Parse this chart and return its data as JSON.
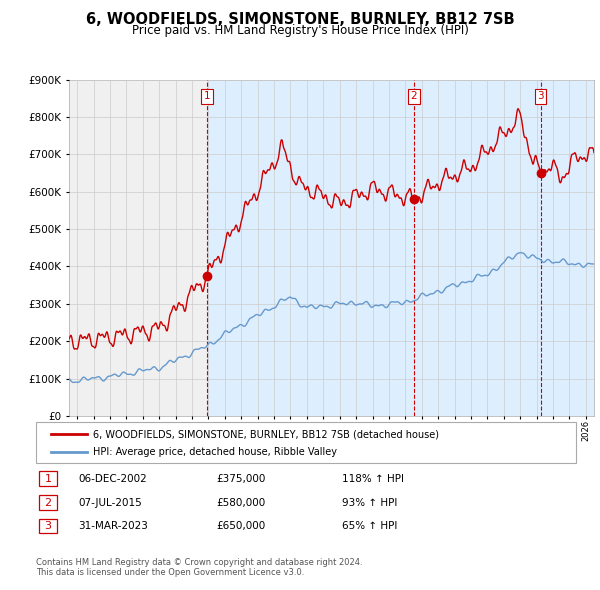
{
  "title": "6, WOODFIELDS, SIMONSTONE, BURNLEY, BB12 7SB",
  "subtitle": "Price paid vs. HM Land Registry's House Price Index (HPI)",
  "legend_entry1": "6, WOODFIELDS, SIMONSTONE, BURNLEY, BB12 7SB (detached house)",
  "legend_entry2": "HPI: Average price, detached house, Ribble Valley",
  "sale1_date": "06-DEC-2002",
  "sale1_price": 375000,
  "sale1_pct": "118%",
  "sale2_date": "07-JUL-2015",
  "sale2_price": 580000,
  "sale2_pct": "93%",
  "sale3_date": "31-MAR-2023",
  "sale3_price": 650000,
  "sale3_pct": "65%",
  "sale1_x": 2002.92,
  "sale2_x": 2015.51,
  "sale3_x": 2023.24,
  "copyright": "Contains HM Land Registry data © Crown copyright and database right 2024.\nThis data is licensed under the Open Government Licence v3.0.",
  "red_color": "#cc0000",
  "blue_color": "#6699cc",
  "shade_color": "#ddeeff",
  "grid_color": "#cccccc",
  "bg_color": "#f0f0f0",
  "ylim": [
    0,
    900000
  ],
  "xlim_left": 1994.5,
  "xlim_right": 2026.5
}
